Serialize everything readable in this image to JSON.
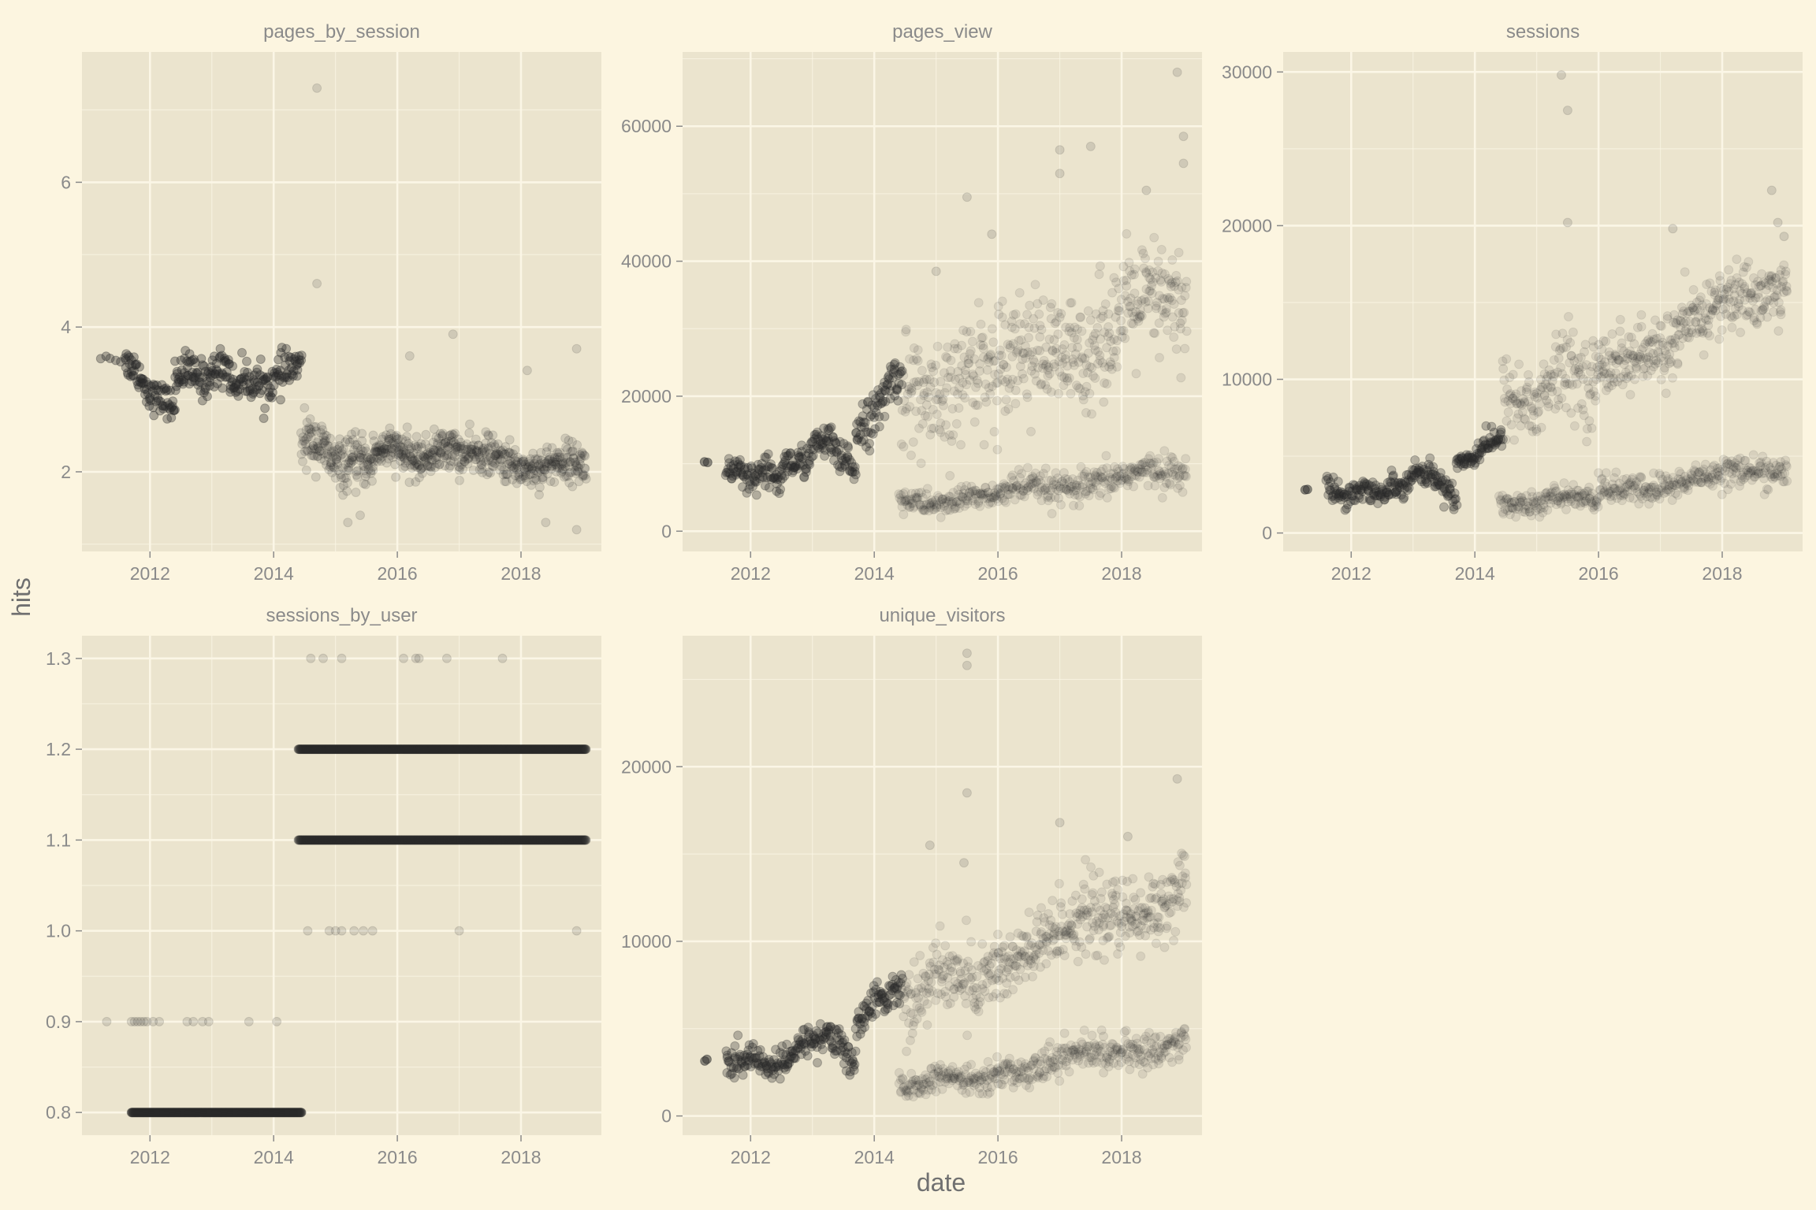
{
  "chart_data": {
    "type": "scatter",
    "xlabel": "date",
    "ylabel": "hits",
    "grid": true,
    "colors": {
      "page_bg": "#fcf5e0",
      "panel_bg": "#ebe4ce",
      "grid": "#fbf6e6",
      "point": "#2a2a2a",
      "text": "#8a8a8a"
    },
    "panels": [
      {
        "name": "pages_by_session",
        "xlim": [
          2010.9,
          2019.3
        ],
        "ylim": [
          0.9,
          7.8
        ],
        "x_ticks": [
          2012,
          2014,
          2016,
          2018
        ],
        "y_ticks": [
          2,
          4,
          6
        ],
        "segments": [
          {
            "x0": 2011.2,
            "x1": 2011.6,
            "y0": 3.6,
            "y1": 3.55,
            "n": 6,
            "noise": 0.06,
            "opacity": 0.35
          },
          {
            "x0": 2011.6,
            "x1": 2012.4,
            "y0": 3.5,
            "y1": 2.8,
            "n": 80,
            "noise": 0.18,
            "opacity": 0.35
          },
          {
            "x0": 2012.4,
            "x1": 2013.3,
            "y0": 3.3,
            "y1": 3.4,
            "n": 95,
            "noise": 0.22,
            "opacity": 0.35
          },
          {
            "x0": 2013.3,
            "x1": 2014.45,
            "y0": 3.15,
            "y1": 3.4,
            "n": 110,
            "noise": 0.22,
            "opacity": 0.35
          },
          {
            "x0": 2014.45,
            "x1": 2015.6,
            "y0": 2.4,
            "y1": 2.0,
            "n": 170,
            "noise": 0.28,
            "opacity": 0.14
          },
          {
            "x0": 2015.6,
            "x1": 2017.0,
            "y0": 2.25,
            "y1": 2.25,
            "n": 230,
            "noise": 0.22,
            "opacity": 0.14
          },
          {
            "x0": 2017.0,
            "x1": 2019.05,
            "y0": 2.2,
            "y1": 2.05,
            "n": 300,
            "noise": 0.22,
            "opacity": 0.14
          }
        ],
        "outliers": [
          [
            2014.7,
            7.3
          ],
          [
            2014.7,
            4.6
          ],
          [
            2016.2,
            3.6
          ],
          [
            2016.9,
            3.9
          ],
          [
            2018.1,
            3.4
          ],
          [
            2018.9,
            3.7
          ],
          [
            2018.9,
            1.2
          ],
          [
            2015.2,
            1.3
          ],
          [
            2015.4,
            1.4
          ],
          [
            2018.4,
            1.3
          ]
        ]
      },
      {
        "name": "pages_view",
        "xlim": [
          2010.9,
          2019.3
        ],
        "ylim": [
          -3000,
          71000
        ],
        "x_ticks": [
          2012,
          2014,
          2016,
          2018
        ],
        "y_ticks": [
          0,
          20000,
          40000,
          60000
        ],
        "segments": [
          {
            "x0": 2011.25,
            "x1": 2011.3,
            "y0": 10000,
            "y1": 10000,
            "n": 2,
            "noise": 300,
            "opacity": 0.5
          },
          {
            "x0": 2011.6,
            "x1": 2012.5,
            "y0": 8500,
            "y1": 7500,
            "n": 90,
            "noise": 2200,
            "opacity": 0.3
          },
          {
            "x0": 2012.5,
            "x1": 2013.3,
            "y0": 9000,
            "y1": 13500,
            "n": 85,
            "noise": 2000,
            "opacity": 0.3
          },
          {
            "x0": 2013.3,
            "x1": 2013.7,
            "y0": 12000,
            "y1": 9000,
            "n": 40,
            "noise": 2200,
            "opacity": 0.3
          },
          {
            "x0": 2013.7,
            "x1": 2014.45,
            "y0": 14000,
            "y1": 23500,
            "n": 80,
            "noise": 2800,
            "opacity": 0.3
          },
          {
            "x0": 2014.45,
            "x1": 2016.0,
            "y0": 18000,
            "y1": 24000,
            "n": 160,
            "noise": 7000,
            "opacity": 0.1
          },
          {
            "x0": 2016.0,
            "x1": 2019.05,
            "y0": 24000,
            "y1": 34000,
            "n": 340,
            "noise": 7000,
            "opacity": 0.1
          },
          {
            "x0": 2014.4,
            "x1": 2016.0,
            "y0": 4000,
            "y1": 5000,
            "n": 150,
            "noise": 1500,
            "opacity": 0.1
          },
          {
            "x0": 2016.0,
            "x1": 2019.05,
            "y0": 5500,
            "y1": 9000,
            "n": 280,
            "noise": 2000,
            "opacity": 0.1
          }
        ],
        "outliers": [
          [
            2015.5,
            49500
          ],
          [
            2017.0,
            56500
          ],
          [
            2017.0,
            53000
          ],
          [
            2017.5,
            57000
          ],
          [
            2018.4,
            50500
          ],
          [
            2018.9,
            68000
          ],
          [
            2019.0,
            58500
          ],
          [
            2019.0,
            54500
          ],
          [
            2015.0,
            38500
          ],
          [
            2015.9,
            44000
          ]
        ]
      },
      {
        "name": "sessions",
        "xlim": [
          2010.9,
          2019.3
        ],
        "ylim": [
          -1200,
          31300
        ],
        "x_ticks": [
          2012,
          2014,
          2016,
          2018
        ],
        "y_ticks": [
          0,
          10000,
          20000,
          30000
        ],
        "segments": [
          {
            "x0": 2011.25,
            "x1": 2011.3,
            "y0": 2800,
            "y1": 2800,
            "n": 2,
            "noise": 100,
            "opacity": 0.5
          },
          {
            "x0": 2011.6,
            "x1": 2012.6,
            "y0": 2800,
            "y1": 2600,
            "n": 95,
            "noise": 650,
            "opacity": 0.3
          },
          {
            "x0": 2012.6,
            "x1": 2013.3,
            "y0": 3000,
            "y1": 4100,
            "n": 70,
            "noise": 600,
            "opacity": 0.3
          },
          {
            "x0": 2013.3,
            "x1": 2013.7,
            "y0": 3800,
            "y1": 2300,
            "n": 40,
            "noise": 700,
            "opacity": 0.3
          },
          {
            "x0": 2013.7,
            "x1": 2014.45,
            "y0": 4500,
            "y1": 6300,
            "n": 75,
            "noise": 650,
            "opacity": 0.3
          },
          {
            "x0": 2014.45,
            "x1": 2016.0,
            "y0": 8500,
            "y1": 10500,
            "n": 160,
            "noise": 2200,
            "opacity": 0.1
          },
          {
            "x0": 2016.0,
            "x1": 2019.05,
            "y0": 10500,
            "y1": 16500,
            "n": 340,
            "noise": 1800,
            "opacity": 0.1
          },
          {
            "x0": 2014.4,
            "x1": 2016.0,
            "y0": 1800,
            "y1": 2400,
            "n": 150,
            "noise": 600,
            "opacity": 0.1
          },
          {
            "x0": 2016.0,
            "x1": 2019.05,
            "y0": 2600,
            "y1": 4300,
            "n": 280,
            "noise": 800,
            "opacity": 0.1
          }
        ],
        "outliers": [
          [
            2015.4,
            29800
          ],
          [
            2015.5,
            27500
          ],
          [
            2015.5,
            20200
          ],
          [
            2018.8,
            22300
          ],
          [
            2018.9,
            20200
          ],
          [
            2017.2,
            19800
          ],
          [
            2019.0,
            19300
          ]
        ]
      },
      {
        "name": "sessions_by_user",
        "xlim": [
          2010.9,
          2019.3
        ],
        "ylim": [
          0.775,
          1.325
        ],
        "x_ticks": [
          2012,
          2014,
          2016,
          2018
        ],
        "y_ticks": [
          0.8,
          0.9,
          1.0,
          1.1,
          1.2,
          1.3
        ],
        "segments": [
          {
            "x0": 2011.7,
            "x1": 2014.45,
            "y0": 0.8,
            "y1": 0.8,
            "n": 220,
            "noise": 0,
            "opacity": 0.45
          },
          {
            "x0": 2014.4,
            "x1": 2019.05,
            "y0": 1.2,
            "y1": 1.2,
            "n": 480,
            "noise": 0,
            "opacity": 0.3
          },
          {
            "x0": 2014.4,
            "x1": 2019.05,
            "y0": 1.1,
            "y1": 1.1,
            "n": 420,
            "noise": 0,
            "opacity": 0.3
          }
        ],
        "outliers": [
          [
            2011.3,
            0.9
          ],
          [
            2011.7,
            0.9
          ],
          [
            2011.75,
            0.9
          ],
          [
            2011.8,
            0.9
          ],
          [
            2011.85,
            0.9
          ],
          [
            2011.9,
            0.9
          ],
          [
            2011.95,
            0.9
          ],
          [
            2012.05,
            0.9
          ],
          [
            2012.15,
            0.9
          ],
          [
            2012.6,
            0.9
          ],
          [
            2012.7,
            0.9
          ],
          [
            2012.85,
            0.9
          ],
          [
            2012.95,
            0.9
          ],
          [
            2013.6,
            0.9
          ],
          [
            2014.05,
            0.9
          ],
          [
            2014.55,
            1.0
          ],
          [
            2014.9,
            1.0
          ],
          [
            2015.0,
            1.0
          ],
          [
            2015.1,
            1.0
          ],
          [
            2015.3,
            1.0
          ],
          [
            2015.45,
            1.0
          ],
          [
            2015.6,
            1.0
          ],
          [
            2017.0,
            1.0
          ],
          [
            2018.9,
            1.0
          ],
          [
            2014.6,
            1.3
          ],
          [
            2014.8,
            1.3
          ],
          [
            2015.1,
            1.3
          ],
          [
            2016.1,
            1.3
          ],
          [
            2016.3,
            1.3
          ],
          [
            2016.35,
            1.3
          ],
          [
            2016.8,
            1.3
          ],
          [
            2017.7,
            1.3
          ]
        ]
      },
      {
        "name": "unique_visitors",
        "xlim": [
          2010.9,
          2019.3
        ],
        "ylim": [
          -1100,
          27500
        ],
        "x_ticks": [
          2012,
          2014,
          2016,
          2018
        ],
        "y_ticks": [
          0,
          10000,
          20000
        ],
        "segments": [
          {
            "x0": 2011.25,
            "x1": 2011.3,
            "y0": 3200,
            "y1": 3200,
            "n": 2,
            "noise": 100,
            "opacity": 0.5
          },
          {
            "x0": 2011.6,
            "x1": 2012.6,
            "y0": 3200,
            "y1": 3000,
            "n": 95,
            "noise": 700,
            "opacity": 0.3
          },
          {
            "x0": 2012.6,
            "x1": 2013.3,
            "y0": 3500,
            "y1": 5000,
            "n": 70,
            "noise": 700,
            "opacity": 0.3
          },
          {
            "x0": 2013.3,
            "x1": 2013.7,
            "y0": 4500,
            "y1": 3000,
            "n": 40,
            "noise": 800,
            "opacity": 0.3
          },
          {
            "x0": 2013.7,
            "x1": 2014.45,
            "y0": 5500,
            "y1": 7700,
            "n": 75,
            "noise": 800,
            "opacity": 0.3
          },
          {
            "x0": 2014.45,
            "x1": 2016.0,
            "y0": 7000,
            "y1": 8500,
            "n": 160,
            "noise": 1800,
            "opacity": 0.1
          },
          {
            "x0": 2016.0,
            "x1": 2019.05,
            "y0": 9000,
            "y1": 13000,
            "n": 340,
            "noise": 1800,
            "opacity": 0.1
          },
          {
            "x0": 2014.4,
            "x1": 2016.0,
            "y0": 1700,
            "y1": 2400,
            "n": 150,
            "noise": 600,
            "opacity": 0.1
          },
          {
            "x0": 2016.0,
            "x1": 2019.05,
            "y0": 2600,
            "y1": 4300,
            "n": 280,
            "noise": 800,
            "opacity": 0.1
          }
        ],
        "outliers": [
          [
            2015.5,
            26500
          ],
          [
            2015.5,
            25800
          ],
          [
            2015.5,
            18500
          ],
          [
            2018.9,
            19300
          ],
          [
            2017.0,
            16800
          ],
          [
            2014.9,
            15500
          ],
          [
            2018.1,
            16000
          ],
          [
            2015.45,
            14500
          ]
        ]
      }
    ]
  }
}
